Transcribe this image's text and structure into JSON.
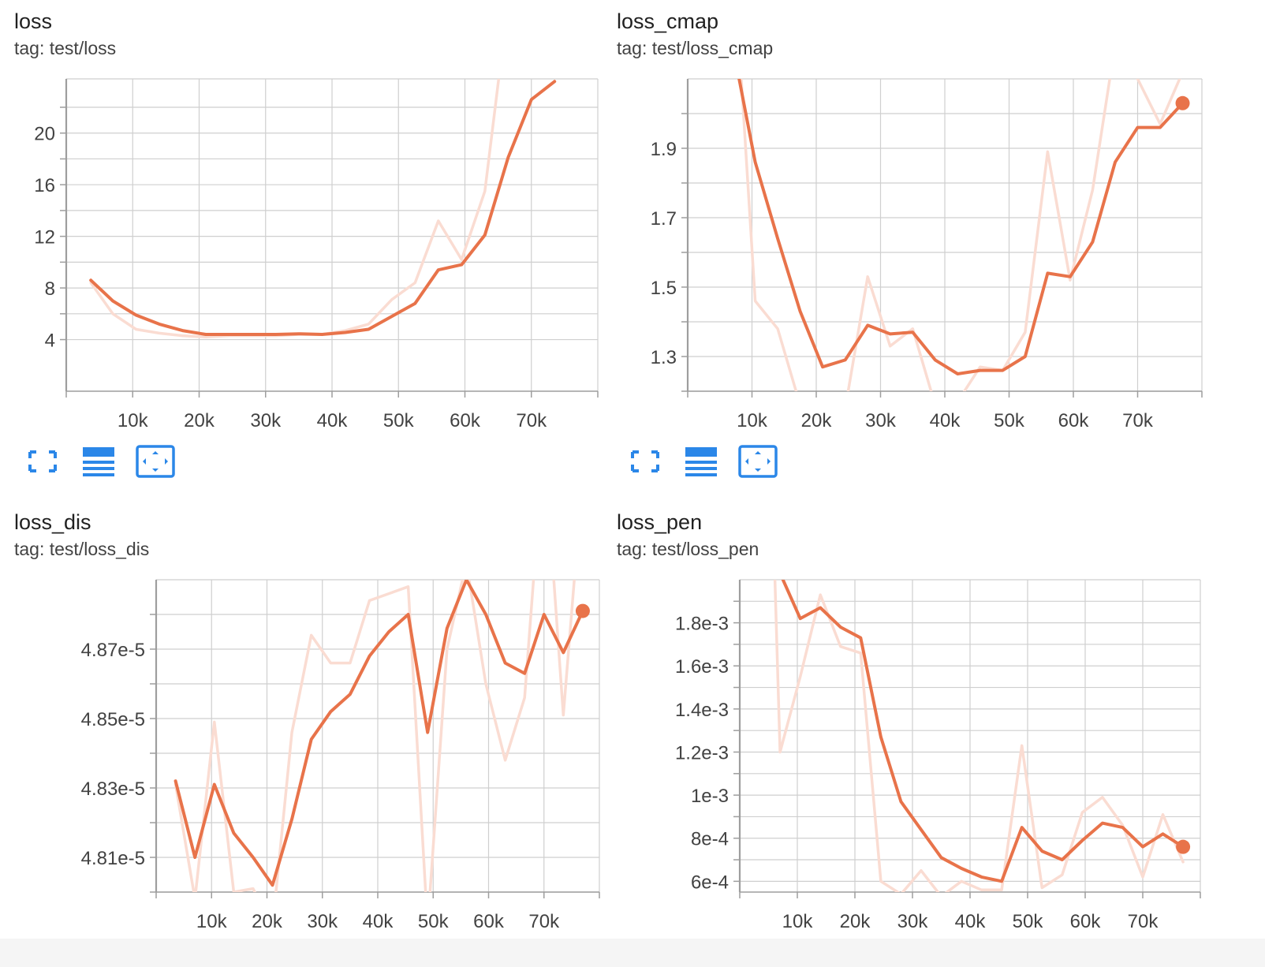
{
  "colors": {
    "smoothed": "#e8734a",
    "raw": "#fadcd2",
    "grid": "#cfcfcf",
    "axis": "#9e9e9e",
    "icon": "#2b87e8"
  },
  "toolbar_icons": [
    "fullscreen-icon",
    "toggle-log-icon",
    "fit-domain-icon"
  ],
  "chart_data": [
    {
      "type": "line",
      "title": "loss",
      "tag": "tag: test/loss",
      "xlim": [
        0,
        80000
      ],
      "ylim": [
        0,
        24.2
      ],
      "xticks": [
        10000,
        20000,
        30000,
        40000,
        50000,
        60000,
        70000
      ],
      "xtick_labels": [
        "10k",
        "20k",
        "30k",
        "40k",
        "50k",
        "60k",
        "70k"
      ],
      "yticks": [
        4,
        8,
        12,
        16,
        20
      ],
      "ytick_labels": [
        "4",
        "8",
        "12",
        "16",
        "20"
      ],
      "yminor": [
        6,
        10,
        14,
        18,
        22
      ],
      "series": [
        {
          "role": "raw",
          "x": [
            3700,
            7000,
            10500,
            14000,
            17500,
            21000,
            24500,
            28000,
            31500,
            35000,
            38500,
            42000,
            45500,
            49000,
            52500,
            56000,
            59500,
            63000,
            66000
          ],
          "y": [
            8.4,
            6.0,
            4.8,
            4.5,
            4.3,
            4.2,
            4.3,
            4.3,
            4.3,
            4.4,
            4.4,
            4.7,
            5.2,
            7.1,
            8.4,
            13.2,
            10.2,
            15.5,
            28.0
          ]
        },
        {
          "role": "smoothed",
          "x": [
            3700,
            7000,
            10500,
            14000,
            17500,
            21000,
            24500,
            28000,
            31500,
            35000,
            38500,
            42000,
            45500,
            49000,
            52500,
            56000,
            59500,
            63000,
            66500,
            70000,
            73500
          ],
          "y": [
            8.6,
            7.0,
            5.9,
            5.2,
            4.7,
            4.4,
            4.4,
            4.4,
            4.4,
            4.45,
            4.4,
            4.55,
            4.8,
            5.8,
            6.8,
            9.4,
            9.8,
            12.1,
            18.1,
            22.6,
            24.0
          ]
        }
      ],
      "end_marker": false
    },
    {
      "type": "line",
      "title": "loss_cmap",
      "tag": "tag: test/loss_cmap",
      "xlim": [
        0,
        80000
      ],
      "ylim": [
        1.2,
        2.1
      ],
      "xticks": [
        10000,
        20000,
        30000,
        40000,
        50000,
        60000,
        70000
      ],
      "xtick_labels": [
        "10k",
        "20k",
        "30k",
        "40k",
        "50k",
        "60k",
        "70k"
      ],
      "yticks": [
        1.3,
        1.5,
        1.7,
        1.9
      ],
      "ytick_labels": [
        "1.3",
        "1.5",
        "1.7",
        "1.9"
      ],
      "yminor": [
        1.2,
        1.4,
        1.6,
        1.8,
        2.0
      ],
      "series": [
        {
          "role": "raw",
          "x": [
            8000,
            10500,
            14000,
            17500,
            21000,
            24500,
            28000,
            31500,
            35000,
            38500,
            42000,
            45500,
            49000,
            52500,
            56000,
            59500,
            63000,
            66500,
            70000,
            73500,
            77000
          ],
          "y": [
            2.2,
            1.46,
            1.38,
            1.16,
            1.05,
            1.15,
            1.53,
            1.33,
            1.38,
            1.16,
            1.17,
            1.27,
            1.26,
            1.37,
            1.89,
            1.52,
            1.78,
            2.2,
            2.1,
            1.97,
            2.12
          ]
        },
        {
          "role": "smoothed",
          "x": [
            8000,
            10500,
            14000,
            17500,
            21000,
            24500,
            28000,
            31500,
            35000,
            38500,
            42000,
            45500,
            49000,
            52500,
            56000,
            59500,
            63000,
            66500,
            70000,
            73500,
            77000
          ],
          "y": [
            2.1,
            1.86,
            1.64,
            1.43,
            1.27,
            1.29,
            1.39,
            1.365,
            1.37,
            1.29,
            1.25,
            1.26,
            1.26,
            1.3,
            1.54,
            1.53,
            1.63,
            1.86,
            1.96,
            1.96,
            2.03
          ]
        }
      ],
      "end_marker": true
    },
    {
      "type": "line",
      "title": "loss_dis",
      "tag": "tag: test/loss_dis",
      "xlim": [
        0,
        80000
      ],
      "ylim": [
        4.8e-05,
        4.89e-05
      ],
      "xticks": [
        10000,
        20000,
        30000,
        40000,
        50000,
        60000,
        70000
      ],
      "xtick_labels": [
        "10k",
        "20k",
        "30k",
        "40k",
        "50k",
        "60k",
        "70k"
      ],
      "yticks": [
        4.81e-05,
        4.83e-05,
        4.85e-05,
        4.87e-05
      ],
      "ytick_labels": [
        "4.81e-5",
        "4.83e-5",
        "4.85e-5",
        "4.87e-5"
      ],
      "yminor": [
        4.8e-05,
        4.82e-05,
        4.84e-05,
        4.86e-05,
        4.88e-05
      ],
      "series": [
        {
          "role": "raw",
          "x": [
            3500,
            7000,
            10500,
            14000,
            17500,
            21000,
            24500,
            28000,
            31500,
            35000,
            38500,
            42000,
            45500,
            49000,
            52500,
            56000,
            59500,
            63000,
            66500,
            70000,
            73500,
            77000
          ],
          "y": [
            4.831e-05,
            4.798e-05,
            4.849e-05,
            4.8e-05,
            4.801e-05,
            4.79e-05,
            4.846e-05,
            4.874e-05,
            4.866e-05,
            4.866e-05,
            4.884e-05,
            4.886e-05,
            4.888e-05,
            4.79e-05,
            4.87e-05,
            4.895e-05,
            4.86e-05,
            4.838e-05,
            4.856e-05,
            4.93e-05,
            4.851e-05,
            4.92e-05
          ]
        },
        {
          "role": "smoothed",
          "x": [
            3500,
            7000,
            10500,
            14000,
            17500,
            21000,
            24500,
            28000,
            31500,
            35000,
            38500,
            42000,
            45500,
            49000,
            52500,
            56000,
            59500,
            63000,
            66500,
            70000,
            73500,
            77000
          ],
          "y": [
            4.832e-05,
            4.81e-05,
            4.831e-05,
            4.817e-05,
            4.81e-05,
            4.802e-05,
            4.821e-05,
            4.844e-05,
            4.852e-05,
            4.857e-05,
            4.868e-05,
            4.875e-05,
            4.88e-05,
            4.846e-05,
            4.876e-05,
            4.89e-05,
            4.88e-05,
            4.866e-05,
            4.863e-05,
            4.88e-05,
            4.869e-05,
            4.881e-05
          ]
        }
      ],
      "end_marker": true
    },
    {
      "type": "line",
      "title": "loss_pen",
      "tag": "tag: test/loss_pen",
      "xlim": [
        0,
        80000
      ],
      "ylim": [
        0.00055,
        0.002
      ],
      "xticks": [
        10000,
        20000,
        30000,
        40000,
        50000,
        60000,
        70000
      ],
      "xtick_labels": [
        "10k",
        "20k",
        "30k",
        "40k",
        "50k",
        "60k",
        "70k"
      ],
      "yticks": [
        0.0006,
        0.0008,
        0.001,
        0.0012,
        0.0014,
        0.0016,
        0.0018
      ],
      "ytick_labels": [
        "6e-4",
        "8e-4",
        "1e-3",
        "1.2e-3",
        "1.4e-3",
        "1.6e-3",
        "1.8e-3"
      ],
      "yminor": [
        0.0007,
        0.0009,
        0.0011,
        0.0013,
        0.0015,
        0.0017,
        0.0019
      ],
      "series": [
        {
          "role": "raw",
          "x": [
            6000,
            7000,
            10500,
            14000,
            17500,
            21000,
            24500,
            28000,
            31500,
            35000,
            38500,
            42000,
            45500,
            49000,
            52500,
            56000,
            59500,
            63000,
            66500,
            70000,
            73500,
            77000
          ],
          "y": [
            0.0021,
            0.0012,
            0.00155,
            0.00193,
            0.00169,
            0.00166,
            0.0006,
            0.00054,
            0.00065,
            0.00053,
            0.0006,
            0.00056,
            0.00056,
            0.00123,
            0.00057,
            0.00063,
            0.00092,
            0.00099,
            0.00086,
            0.00062,
            0.00091,
            0.00069
          ]
        },
        {
          "role": "smoothed",
          "x": [
            7500,
            10500,
            14000,
            17500,
            21000,
            24500,
            28000,
            31500,
            35000,
            38500,
            42000,
            45500,
            49000,
            52500,
            56000,
            59500,
            63000,
            66500,
            70000,
            73500,
            77000
          ],
          "y": [
            0.002,
            0.00182,
            0.00187,
            0.00178,
            0.00173,
            0.00127,
            0.00097,
            0.00084,
            0.00071,
            0.00066,
            0.00062,
            0.0006,
            0.00085,
            0.00074,
            0.0007,
            0.00079,
            0.00087,
            0.00085,
            0.00076,
            0.00082,
            0.00076
          ]
        }
      ],
      "end_marker": true
    }
  ]
}
